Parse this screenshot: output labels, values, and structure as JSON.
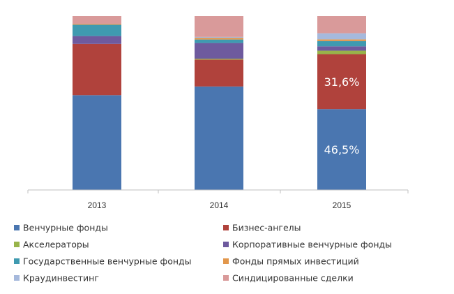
{
  "chart_data": {
    "type": "bar",
    "stacked": true,
    "stack_mode": "percent",
    "categories": [
      "2013",
      "2014",
      "2015"
    ],
    "ylim": [
      0,
      100
    ],
    "grid": false,
    "legend_position": "bottom",
    "series": [
      {
        "name": "Венчурные фонды",
        "color": "#4a76b0",
        "values": [
          54.5,
          59.5,
          46.5
        ]
      },
      {
        "name": "Бизнес-ангелы",
        "color": "#b0423c",
        "values": [
          29.5,
          15.5,
          31.6
        ]
      },
      {
        "name": "Акселераторы",
        "color": "#98b44a",
        "values": [
          0.0,
          0.5,
          2.0
        ]
      },
      {
        "name": "Корпоративные венчурные фонды",
        "color": "#6e5a9e",
        "values": [
          4.5,
          9.0,
          2.5
        ]
      },
      {
        "name": "Государственные венчурные фонды",
        "color": "#3f9ab0",
        "values": [
          6.5,
          2.0,
          3.0
        ]
      },
      {
        "name": "Фонды прямых инвестиций",
        "color": "#e2974c",
        "values": [
          0.5,
          1.0,
          1.0
        ]
      },
      {
        "name": "Краудинвестинг",
        "color": "#a6b9dc",
        "values": [
          0.0,
          0.5,
          3.5
        ]
      },
      {
        "name": "Синдицированные сделки",
        "color": "#d99a9a",
        "values": [
          4.5,
          12.0,
          9.9
        ]
      }
    ],
    "data_labels": [
      {
        "category": "2015",
        "series": "Венчурные фонды",
        "text": "46,5%"
      },
      {
        "category": "2015",
        "series": "Бизнес-ангелы",
        "text": "31,6%"
      }
    ]
  }
}
